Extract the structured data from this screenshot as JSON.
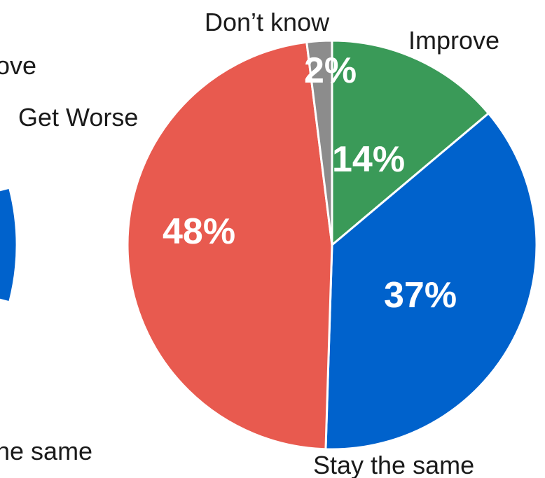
{
  "chart_data": [
    {
      "type": "pie",
      "partial": true,
      "categories": [
        "Improve",
        "Stay the same",
        "Get Worse"
      ],
      "labels": {
        "improve": "ove",
        "stay_the_same": "he same"
      },
      "colors": [
        "#3a9a58",
        "#0062cc",
        "#e85a4f"
      ]
    },
    {
      "type": "pie",
      "categories": [
        "Improve",
        "Stay the same",
        "Get Worse",
        "Don’t know"
      ],
      "values": [
        14,
        37,
        48,
        2
      ],
      "value_labels": [
        "14%",
        "37%",
        "48%",
        "2%"
      ],
      "colors": [
        "#3a9a58",
        "#0062cc",
        "#e85a4f",
        "#8c8c8c"
      ],
      "category_labels": {
        "improve": "Improve",
        "stay_the_same": "Stay the same",
        "get_worse": "Get Worse",
        "dont_know": "Don’t know"
      }
    }
  ]
}
